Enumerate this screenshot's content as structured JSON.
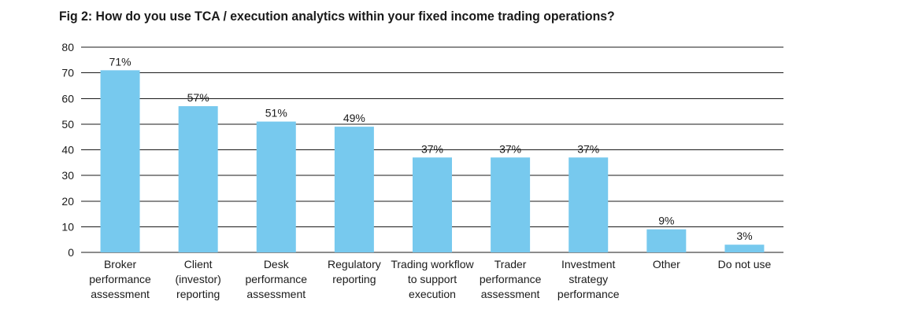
{
  "title": "Fig 2: How do you use TCA / execution analytics within your fixed income trading operations?",
  "colors": {
    "bar": "#77c9ee",
    "grid": "#1a1a1a",
    "text": "#1a1a1a"
  },
  "chart_data": {
    "type": "bar",
    "title": "Fig 2: How do you use TCA / execution analytics within your fixed income trading operations?",
    "xlabel": "",
    "ylabel": "",
    "ylim": [
      0,
      80
    ],
    "yticks": [
      0,
      10,
      20,
      30,
      40,
      50,
      60,
      70,
      80
    ],
    "grid": true,
    "legend": "none",
    "categories": [
      [
        "Broker",
        "performance",
        "assessment"
      ],
      [
        "Client",
        "(investor)",
        "reporting"
      ],
      [
        "Desk",
        "performance",
        "assessment"
      ],
      [
        "Regulatory",
        "reporting"
      ],
      [
        "Trading workflow",
        "to support",
        "execution"
      ],
      [
        "Trader",
        "performance",
        "assessment"
      ],
      [
        "Investment",
        "strategy",
        "performance"
      ],
      [
        "Other"
      ],
      [
        "Do not use"
      ]
    ],
    "values": [
      71,
      57,
      51,
      49,
      37,
      37,
      37,
      9,
      3
    ],
    "value_labels": [
      "71%",
      "57%",
      "51%",
      "49%",
      "37%",
      "37%",
      "37%",
      "9%",
      "3%"
    ]
  }
}
